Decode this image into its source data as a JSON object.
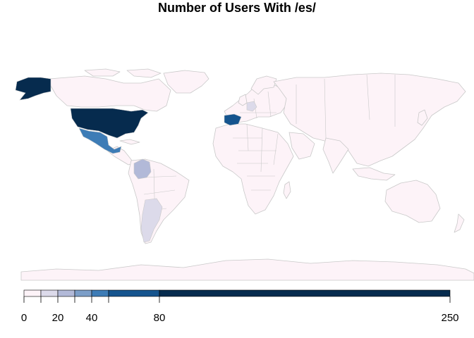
{
  "title": "Number of Users With /es/",
  "colors": {
    "background": "#ffffff",
    "land_default": "#fdf3f8",
    "border": "#c9c9c9",
    "ocean": "#ffffff"
  },
  "legend": {
    "breaks": [
      0,
      10,
      20,
      30,
      40,
      50,
      80,
      250
    ],
    "bin_colors": [
      "#fdf3f8",
      "#dcdaea",
      "#b2b9d8",
      "#7c9ec8",
      "#3d7cb6",
      "#15548e",
      "#062b4e"
    ],
    "tick_labels": [
      {
        "value": 0,
        "label": "0"
      },
      {
        "value": 10,
        "label": ""
      },
      {
        "value": 20,
        "label": "20"
      },
      {
        "value": 30,
        "label": ""
      },
      {
        "value": 40,
        "label": "40"
      },
      {
        "value": 50,
        "label": ""
      },
      {
        "value": 80,
        "label": "80"
      },
      {
        "value": 250,
        "label": "250"
      }
    ]
  },
  "highlighted_regions": [
    {
      "name": "United States",
      "bin": 6
    },
    {
      "name": "Alaska",
      "bin": 6
    },
    {
      "name": "Spain",
      "bin": 5
    },
    {
      "name": "Mexico",
      "bin": 4
    },
    {
      "name": "Colombia",
      "bin": 2
    },
    {
      "name": "Argentina",
      "bin": 1
    },
    {
      "name": "Germany",
      "bin": 1
    }
  ]
}
